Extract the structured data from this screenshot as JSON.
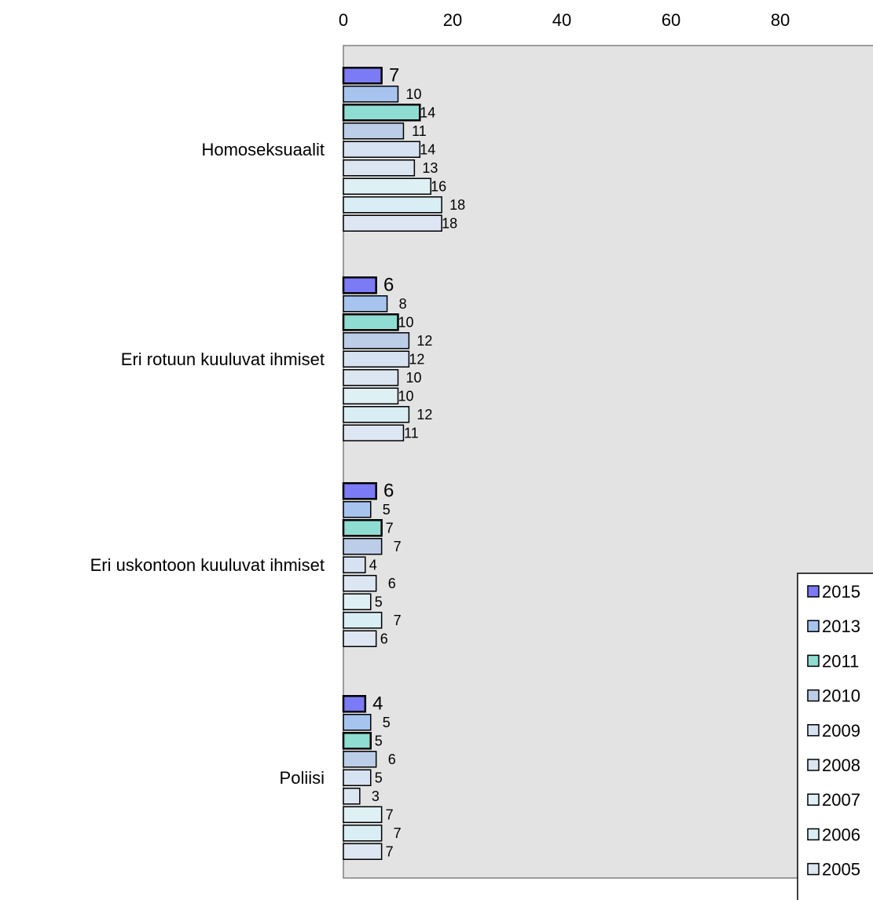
{
  "chart_data": {
    "type": "bar",
    "orientation": "horizontal",
    "title": "",
    "xlabel": "",
    "ylabel": "",
    "xlim": [
      0,
      100
    ],
    "x_ticks": [
      0,
      20,
      40,
      60,
      80
    ],
    "x_tick_labels": [
      "0",
      "20",
      "40",
      "60",
      "80"
    ],
    "x_axis_position": "top",
    "grid": false,
    "plot_background": "#e3e3e3",
    "legend_position": "bottom-right",
    "categories": [
      "Homoseksuaalit",
      "Eri rotuun kuuluvat ihmiset",
      "Eri uskontoon kuuluvat ihmiset",
      "Poliisi"
    ],
    "series": [
      {
        "name": "2015",
        "color": "#7b7bf5",
        "values": [
          7,
          6,
          6,
          4
        ]
      },
      {
        "name": "2013",
        "color": "#a6c4ee",
        "values": [
          10,
          8,
          5,
          5
        ]
      },
      {
        "name": "2011",
        "color": "#8fdcd2",
        "values": [
          14,
          10,
          7,
          5
        ]
      },
      {
        "name": "2010",
        "color": "#bccde8",
        "values": [
          11,
          12,
          7,
          6
        ]
      },
      {
        "name": "2009",
        "color": "#d6e1f1",
        "values": [
          14,
          12,
          4,
          5
        ]
      },
      {
        "name": "2008",
        "color": "#dce5f2",
        "values": [
          13,
          10,
          6,
          3
        ]
      },
      {
        "name": "2007",
        "color": "#dff0f4",
        "values": [
          16,
          10,
          5,
          7
        ]
      },
      {
        "name": "2006",
        "color": "#d8eef4",
        "values": [
          18,
          12,
          7,
          7
        ]
      },
      {
        "name": "2005",
        "color": "#dde6f2",
        "values": [
          18,
          11,
          6,
          7
        ]
      }
    ]
  }
}
